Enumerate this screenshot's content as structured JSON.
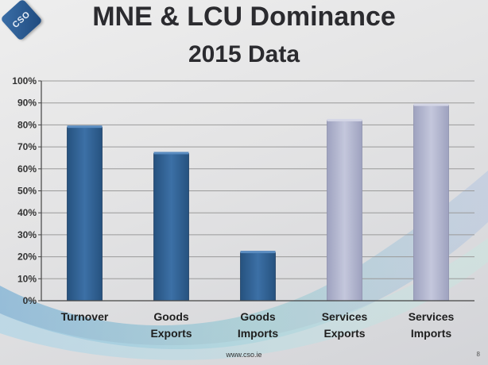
{
  "slide": {
    "logo_text": "CSO",
    "title_line1": "MNE & LCU Dominance",
    "title_line2": "2015 Data",
    "footer": "www.cso.ie",
    "page_number": "8"
  },
  "chart_data": {
    "type": "bar",
    "title": "MNE & LCU Dominance 2015 Data",
    "categories": [
      [
        "Turnover"
      ],
      [
        "Goods",
        "Exports"
      ],
      [
        "Goods",
        "Imports"
      ],
      [
        "Services",
        "Exports"
      ],
      [
        "Services",
        "Imports"
      ]
    ],
    "values": [
      79,
      67,
      22,
      82,
      89
    ],
    "ylim": [
      0,
      100
    ],
    "yticks": [
      "0%",
      "10%",
      "20%",
      "30%",
      "40%",
      "50%",
      "60%",
      "70%",
      "80%",
      "90%",
      "100%"
    ],
    "grid": true,
    "colors": {
      "goods": "#2f5f93",
      "services": "#aeb2cc",
      "axis": "#444444",
      "grid": "#9a9a9a"
    }
  }
}
